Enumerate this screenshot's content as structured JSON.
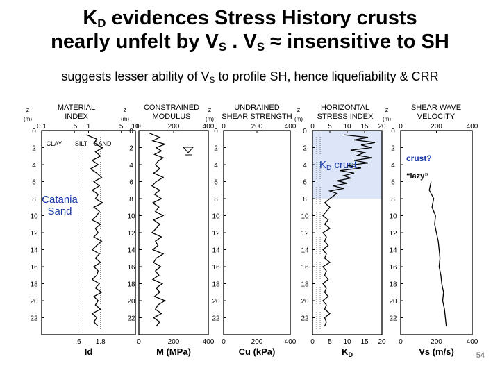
{
  "slide": {
    "title_line1": {
      "a": "K",
      "sub": "D",
      "b": " evidences Stress History crusts"
    },
    "title_line2": {
      "a": "nearly unfelt by V",
      "sub1": "S",
      "b": " . V",
      "sub2": "S",
      "c": " ≈ insensitive to SH"
    },
    "subtitle": {
      "a": "suggests lesser ability of V",
      "sub": "S",
      "b": " to profile SH, hence liquefiability & CRR"
    },
    "page_number": "54"
  },
  "chart_data": [
    {
      "type": "line",
      "panel": "material-index",
      "title": "MATERIAL\nINDEX",
      "ylabel": "z (m)",
      "xlabel": "Id",
      "xlim": [
        0.1,
        10
      ],
      "xscale": "log",
      "x_ticks_top": [
        "0.1",
        ".5",
        "1",
        "5",
        "10"
      ],
      "x_ticks_bottom": [
        ".6",
        "1.8"
      ],
      "soil_labels": [
        "CLAY",
        "SILT",
        "SAND"
      ],
      "ylim": [
        0,
        24
      ],
      "y_ticks": [
        0,
        2,
        4,
        6,
        8,
        10,
        12,
        14,
        16,
        18,
        20,
        22
      ],
      "annotation": "Catania\nSand",
      "profile": {
        "z": [
          0.5,
          1,
          1.5,
          2,
          2.5,
          3,
          3.5,
          4,
          4.5,
          5,
          5.5,
          6,
          6.5,
          7,
          7.5,
          8,
          8.5,
          9,
          9.5,
          10,
          10.5,
          11,
          11.5,
          12,
          12.5,
          13,
          13.5,
          14,
          14.5,
          15,
          15.5,
          16,
          16.5,
          17,
          17.5,
          18,
          18.5,
          19,
          19.5,
          20,
          20.5,
          21,
          21.5,
          22,
          22.5,
          23
        ],
        "x": [
          0.9,
          1.5,
          1.3,
          2.0,
          1.4,
          1.8,
          1.2,
          1.6,
          1.1,
          1.5,
          1.9,
          1.3,
          1.7,
          1.2,
          1.6,
          1.4,
          2.0,
          1.3,
          1.7,
          1.5,
          1.2,
          1.8,
          1.4,
          1.6,
          1.3,
          1.9,
          1.5,
          1.2,
          1.7,
          1.4,
          1.8,
          1.3,
          1.6,
          1.5,
          1.2,
          1.7,
          1.4,
          1.9,
          1.3,
          1.6,
          1.4,
          1.8,
          1.2,
          1.5,
          1.3,
          1.6
        ]
      }
    },
    {
      "type": "line",
      "panel": "constrained-modulus",
      "title": "CONSTRAINED\nMODULUS",
      "ylabel": "z (m)",
      "xlabel": "M (MPa)",
      "xlim": [
        0,
        400
      ],
      "x_ticks": [
        "0",
        "200",
        "400"
      ],
      "ylim": [
        0,
        24
      ],
      "y_ticks": [
        0,
        2,
        4,
        6,
        8,
        10,
        12,
        14,
        16,
        18,
        20,
        22
      ],
      "profile": {
        "z": [
          0.3,
          0.8,
          1.2,
          1.6,
          2.0,
          2.4,
          2.8,
          3.2,
          3.6,
          4,
          4.5,
          5,
          5.5,
          6,
          6.5,
          7,
          7.5,
          8,
          8.5,
          9,
          9.5,
          10,
          10.5,
          11,
          11.5,
          12,
          12.5,
          13,
          13.5,
          14,
          14.5,
          15,
          15.5,
          16,
          16.5,
          17,
          17.5,
          18,
          18.5,
          19,
          19.5,
          20,
          20.5,
          21,
          21.5,
          22,
          22.5,
          23
        ],
        "x": [
          60,
          120,
          80,
          150,
          100,
          130,
          90,
          140,
          110,
          95,
          120,
          85,
          140,
          100,
          75,
          120,
          90,
          130,
          80,
          115,
          95,
          140,
          85,
          120,
          100,
          75,
          130,
          95,
          110,
          80,
          140,
          100,
          85,
          125,
          95,
          115,
          80,
          135,
          100,
          120,
          90,
          150,
          110,
          95,
          130,
          85,
          120,
          100
        ]
      }
    },
    {
      "type": "line",
      "panel": "undrained-shear-strength",
      "title": "UNDRAINED\nSHEAR STRENGTH",
      "ylabel": "z (m)",
      "xlabel": "Cu (kPa)",
      "xlim": [
        0,
        400
      ],
      "x_ticks": [
        "0",
        "200",
        "400"
      ],
      "ylim": [
        0,
        24
      ],
      "y_ticks": [
        0,
        2,
        4,
        6,
        8,
        10,
        12,
        14,
        16,
        18,
        20,
        22
      ]
    },
    {
      "type": "line",
      "panel": "horizontal-stress-index",
      "title": "HORIZONTAL\nSTRESS INDEX",
      "ylabel": "z (m)",
      "xlabel": "K",
      "xlabel_sub": "D",
      "xlim": [
        0,
        20
      ],
      "x_ticks": [
        "0",
        "5",
        "10",
        "15",
        "20"
      ],
      "ylim": [
        0,
        24
      ],
      "y_ticks": [
        0,
        2,
        4,
        6,
        8,
        10,
        12,
        14,
        16,
        18,
        20,
        22
      ],
      "annotation": {
        "a": "K",
        "sub": "D",
        "b": " crust"
      },
      "highlight_z": [
        0,
        8
      ],
      "profile": {
        "z": [
          0.5,
          0.8,
          1.1,
          1.4,
          1.7,
          2.0,
          2.3,
          2.6,
          2.9,
          3.2,
          3.5,
          3.8,
          4.1,
          4.4,
          4.7,
          5.0,
          5.3,
          5.6,
          5.9,
          6.2,
          6.5,
          6.8,
          7.1,
          7.4,
          7.7,
          8.0,
          8.5,
          9,
          9.5,
          10,
          10.5,
          11,
          11.5,
          12,
          12.5,
          13,
          13.5,
          14,
          14.5,
          15,
          15.5,
          16,
          16.5,
          17,
          17.5,
          18,
          18.5,
          19,
          19.5,
          20,
          20.5,
          21,
          21.5,
          22,
          22.5,
          23
        ],
        "x": [
          9,
          16,
          12,
          18,
          14,
          17,
          11,
          15,
          13,
          17,
          12,
          16,
          10,
          14,
          8,
          12,
          9,
          11,
          7,
          10,
          6,
          9,
          5,
          7,
          6,
          5,
          3.5,
          5,
          4,
          3,
          4.5,
          3.5,
          5,
          3,
          4,
          3.5,
          4.5,
          3,
          4,
          3.5,
          5,
          3,
          4,
          3.5,
          4.5,
          3,
          4,
          3.5,
          4.5,
          3,
          4,
          3.5,
          5,
          3.5,
          4,
          3.5
        ]
      }
    },
    {
      "type": "line",
      "panel": "shear-wave-velocity",
      "title": "SHEAR WAVE\nVELOCITY",
      "ylabel": "z (m)",
      "xlabel": "Vs (m/s)",
      "xlim": [
        0,
        400
      ],
      "x_ticks": [
        "0",
        "200",
        "400"
      ],
      "ylim": [
        0,
        24
      ],
      "y_ticks": [
        0,
        2,
        4,
        6,
        8,
        10,
        12,
        14,
        16,
        18,
        20,
        22
      ],
      "annotations": [
        "crust?",
        "“lazy”"
      ],
      "profile": {
        "z": [
          6,
          7,
          8,
          9,
          10,
          11,
          12,
          13,
          14,
          15,
          16,
          17,
          18,
          19,
          20,
          21,
          22,
          23
        ],
        "x": [
          170,
          160,
          185,
          175,
          195,
          190,
          200,
          210,
          215,
          220,
          215,
          225,
          230,
          240,
          235,
          245,
          250,
          255
        ]
      }
    }
  ]
}
